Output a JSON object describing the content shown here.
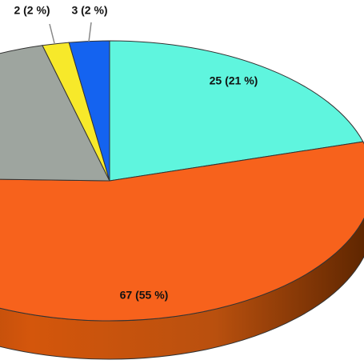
{
  "chart_data": {
    "type": "pie",
    "values": [
      25,
      67,
      25,
      2,
      3
    ],
    "value_labels": [
      "25 (21 %)",
      "67 (55 %)",
      null,
      "2 (2 %)",
      "3 (2 %)"
    ],
    "colors": [
      "#5ff5de",
      "#f7621c",
      "#9ea59f",
      "#f7e92a",
      "#1463f0"
    ]
  }
}
